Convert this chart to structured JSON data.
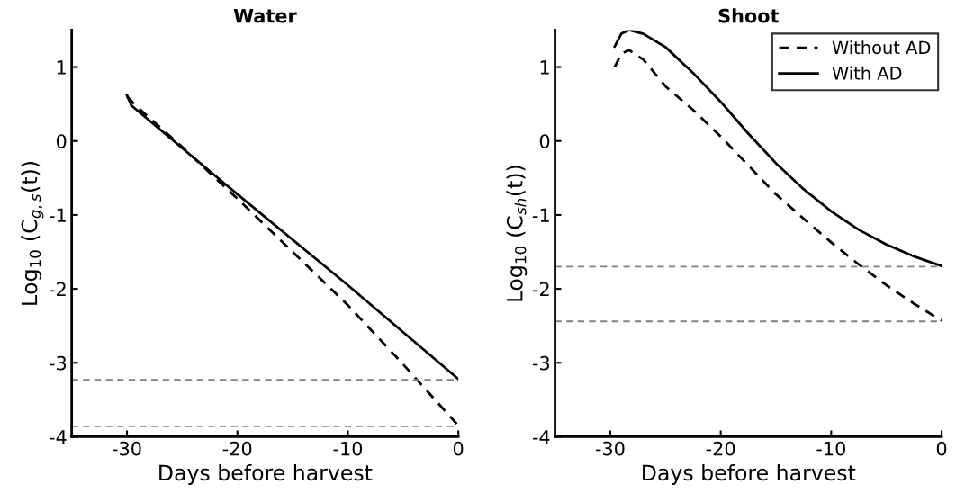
{
  "chart_data": [
    {
      "type": "line",
      "title": "Water",
      "xlabel": "Days before harvest",
      "ylabel": "Log$_{10}$ (C$_{g,s}$(t))",
      "xlim": [
        -35,
        0
      ],
      "ylim": [
        -4,
        1.5
      ],
      "xticks": [
        -30,
        -20,
        -10,
        0
      ],
      "yticks": [
        -4,
        -3,
        -2,
        -1,
        0,
        1
      ],
      "grid": false,
      "legend": false,
      "series": [
        {
          "color": "#000000",
          "line_style": "dashed",
          "x": [
            -30,
            -29,
            -25,
            -20,
            -15,
            -10,
            -5,
            0
          ],
          "values": [
            0.6,
            0.45,
            -0.08,
            -0.78,
            -1.5,
            -2.22,
            -3.02,
            -3.85
          ]
        },
        {
          "color": "#000000",
          "line_style": "solid",
          "x": [
            -30,
            -29.6,
            -20,
            -10,
            0
          ],
          "values": [
            0.62,
            0.48,
            -0.72,
            -1.95,
            -3.22
          ]
        }
      ],
      "ref_lines": [
        {
          "axis": "y",
          "value": -3.23,
          "label": null,
          "color": "#808080",
          "line_style": "dashed"
        },
        {
          "axis": "y",
          "value": -3.86,
          "label": null,
          "color": "#808080",
          "line_style": "dashed"
        }
      ]
    },
    {
      "type": "line",
      "title": "Shoot",
      "xlabel": "Days before harvest",
      "ylabel": "Log$_{10}$ (C$_{sh}$(t))",
      "xlim": [
        -35,
        0
      ],
      "ylim": [
        -4,
        1.5
      ],
      "xticks": [
        -30,
        -20,
        -10,
        0
      ],
      "yticks": [
        -4,
        -3,
        -2,
        -1,
        0,
        1
      ],
      "grid": false,
      "legend": "top right",
      "series": [
        {
          "name": "Without AD",
          "color": "#000000",
          "line_style": "dashed",
          "x": [
            -29.6,
            -29,
            -28.3,
            -27,
            -25,
            -22.5,
            -20,
            -17.5,
            -15,
            -12.5,
            -10,
            -7.5,
            -5,
            -2.5,
            0
          ],
          "values": [
            1.0,
            1.18,
            1.23,
            1.1,
            0.74,
            0.42,
            0.06,
            -0.33,
            -0.72,
            -1.05,
            -1.37,
            -1.67,
            -1.95,
            -2.2,
            -2.43
          ]
        },
        {
          "name": "With AD",
          "color": "#000000",
          "line_style": "solid",
          "x": [
            -29.6,
            -29,
            -28.3,
            -27,
            -25,
            -22.5,
            -20,
            -17.5,
            -15,
            -12.5,
            -10,
            -7.5,
            -5,
            -2.5,
            0
          ],
          "values": [
            1.28,
            1.45,
            1.5,
            1.45,
            1.27,
            0.92,
            0.53,
            0.1,
            -0.3,
            -0.65,
            -0.95,
            -1.2,
            -1.4,
            -1.56,
            -1.69
          ]
        }
      ],
      "ref_lines": [
        {
          "axis": "y",
          "value": -1.7,
          "label": null,
          "color": "#808080",
          "line_style": "dashed"
        },
        {
          "axis": "y",
          "value": -2.44,
          "label": null,
          "color": "#808080",
          "line_style": "dashed"
        }
      ]
    }
  ]
}
